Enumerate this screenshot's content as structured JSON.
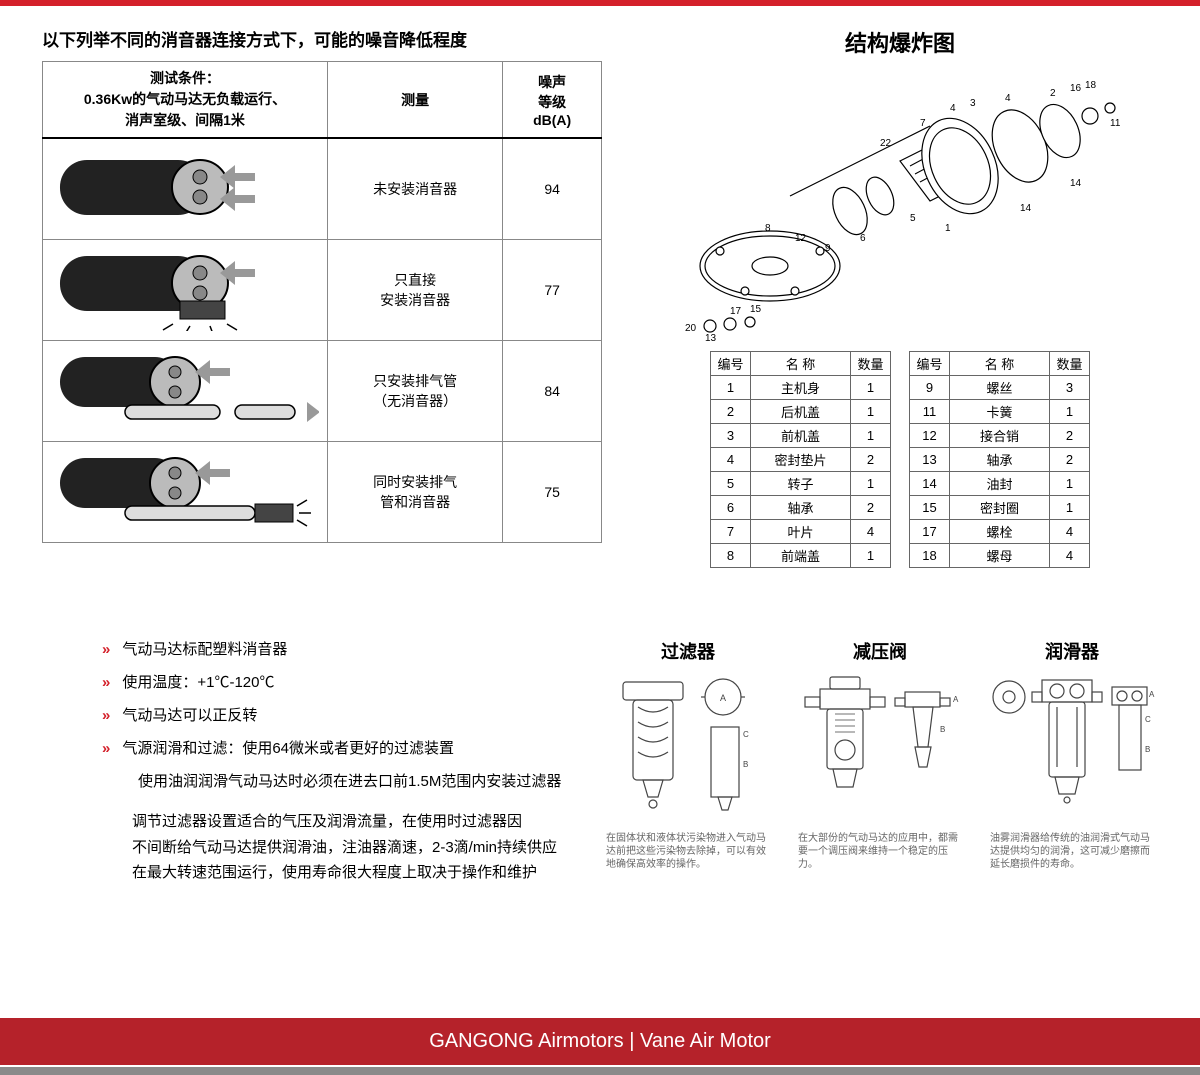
{
  "colors": {
    "accent": "#d4202a",
    "text": "#000",
    "border": "#888"
  },
  "title": "以下列举不同的消音器连接方式下，可能的噪音降低程度",
  "noise_table": {
    "conditions_label": "测试条件：",
    "conditions_line1": "0.36Kw的气动马达无负载运行、",
    "conditions_line2": "消声室级、间隔1米",
    "col_meas": "测量",
    "col_db_1": "噪声",
    "col_db_2": "等级",
    "col_db_3": "dB(A)",
    "rows": [
      {
        "meas": "未安装消音器",
        "db": "94"
      },
      {
        "meas_1": "只直接",
        "meas_2": "安装消音器",
        "db": "77"
      },
      {
        "meas_1": "只安装排气管",
        "meas_2": "（无消音器）",
        "db": "84"
      },
      {
        "meas_1": "同时安装排气",
        "meas_2": "管和消音器",
        "db": "75"
      }
    ]
  },
  "exploded": {
    "title": "结构爆炸图",
    "headers": {
      "num": "编号",
      "name": "名  称",
      "qty": "数量"
    },
    "left": [
      {
        "n": "1",
        "name": "主机身",
        "q": "1"
      },
      {
        "n": "2",
        "name": "后机盖",
        "q": "1"
      },
      {
        "n": "3",
        "name": "前机盖",
        "q": "1"
      },
      {
        "n": "4",
        "name": "密封垫片",
        "q": "2"
      },
      {
        "n": "5",
        "name": "转子",
        "q": "1"
      },
      {
        "n": "6",
        "name": "轴承",
        "q": "2"
      },
      {
        "n": "7",
        "name": "叶片",
        "q": "4"
      },
      {
        "n": "8",
        "name": "前端盖",
        "q": "1"
      }
    ],
    "right": [
      {
        "n": "9",
        "name": "螺丝",
        "q": "3"
      },
      {
        "n": "11",
        "name": "卡簧",
        "q": "1"
      },
      {
        "n": "12",
        "name": "接合销",
        "q": "2"
      },
      {
        "n": "13",
        "name": "轴承",
        "q": "2"
      },
      {
        "n": "14",
        "name": "油封",
        "q": "1"
      },
      {
        "n": "15",
        "name": "密封圈",
        "q": "1"
      },
      {
        "n": "17",
        "name": "螺栓",
        "q": "4"
      },
      {
        "n": "18",
        "name": "螺母",
        "q": "4"
      }
    ]
  },
  "bullets": {
    "b1": "气动马达标配塑料消音器",
    "b2": "使用温度：+1℃-120℃",
    "b3": "气动马达可以正反转",
    "b4": "气源润滑和过滤：使用64微米或者更好的过滤装置",
    "b4_sub": "使用油润润滑气动马达时必须在进去口前1.5M范围内安装过滤器",
    "para_1": "调节过滤器设置适合的气压及润滑流量，在使用时过滤器因",
    "para_2": "不间断给气动马达提供润滑油，注油器滴速，2-3滴/min持续供应",
    "para_3": "在最大转速范围运行，使用寿命很大程度上取决于操作和维护"
  },
  "components": {
    "filter": {
      "title": "过滤器",
      "desc": "在固体状和液体状污染物进入气动马达前把这些污染物去除掉，可以有效地确保高效率的操作。"
    },
    "regulator": {
      "title": "减压阀",
      "desc": "在大部份的气动马达的应用中，都需要一个调压阀来维持一个稳定的压力。"
    },
    "lubricator": {
      "title": "润滑器",
      "desc": "油雾润滑器给传统的油润滑式气动马达提供均匀的润滑，这可减少磨擦而延长磨损件的寿命。"
    }
  },
  "footer": "GANGONG Airmotors  |  Vane Air Motor"
}
